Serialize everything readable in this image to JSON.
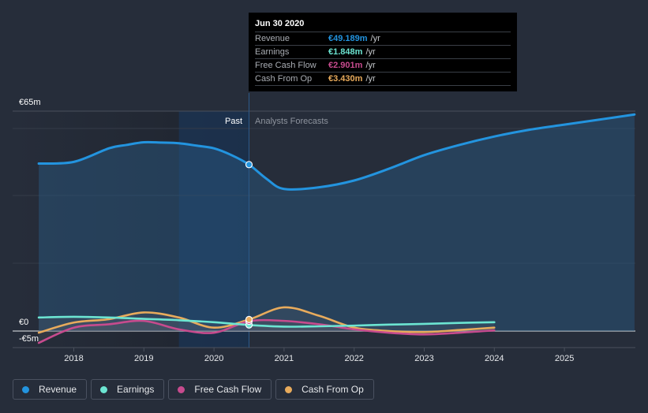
{
  "tooltip": {
    "date": "Jun 30 2020",
    "rows": [
      {
        "name": "Revenue",
        "value": "€49.189m",
        "unit": "/yr",
        "color": "#2394df"
      },
      {
        "name": "Earnings",
        "value": "€1.848m",
        "unit": "/yr",
        "color": "#6ce5d2"
      },
      {
        "name": "Free Cash Flow",
        "value": "€2.901m",
        "unit": "/yr",
        "color": "#c74b8e"
      },
      {
        "name": "Cash From Op",
        "value": "€3.430m",
        "unit": "/yr",
        "color": "#e8ab5c"
      }
    ]
  },
  "regions": {
    "past": "Past",
    "forecast": "Analysts Forecasts"
  },
  "legend": [
    {
      "label": "Revenue",
      "color": "#2394df"
    },
    {
      "label": "Earnings",
      "color": "#6ce5d2"
    },
    {
      "label": "Free Cash Flow",
      "color": "#c74b8e"
    },
    {
      "label": "Cash From Op",
      "color": "#e8ab5c"
    }
  ],
  "chart_data": {
    "type": "line",
    "title": "",
    "xlabel": "",
    "ylabel": "",
    "unit": "€m",
    "ylim": [
      -5,
      65
    ],
    "xlim": [
      2017.5,
      2026.0
    ],
    "y_tick_labels": [
      {
        "value": 65,
        "label": "€65m"
      },
      {
        "value": 0,
        "label": "€0"
      },
      {
        "value": -5,
        "label": "-€5m"
      }
    ],
    "x_tick_labels": [
      "2018",
      "2019",
      "2020",
      "2021",
      "2022",
      "2023",
      "2024",
      "2025"
    ],
    "x_ticks": [
      2018,
      2019,
      2020,
      2021,
      2022,
      2023,
      2024,
      2025
    ],
    "past_forecast_divider": 2020.5,
    "highlight_point": {
      "x": 2020.5,
      "date": "Jun 30 2020"
    },
    "series": [
      {
        "name": "Revenue",
        "color": "#2394df",
        "points": [
          [
            2017.5,
            49.5
          ],
          [
            2018.0,
            50.0
          ],
          [
            2018.5,
            54.0
          ],
          [
            2018.75,
            55.0
          ],
          [
            2019.0,
            55.8
          ],
          [
            2019.25,
            55.7
          ],
          [
            2019.5,
            55.5
          ],
          [
            2019.75,
            54.8
          ],
          [
            2020.0,
            54.0
          ],
          [
            2020.25,
            52.0
          ],
          [
            2020.5,
            49.2
          ],
          [
            2020.75,
            45.0
          ],
          [
            2021.0,
            42.0
          ],
          [
            2021.5,
            42.5
          ],
          [
            2022.0,
            44.5
          ],
          [
            2022.5,
            48.0
          ],
          [
            2023.0,
            52.0
          ],
          [
            2023.5,
            55.0
          ],
          [
            2024.0,
            57.5
          ],
          [
            2024.5,
            59.5
          ],
          [
            2025.0,
            61.0
          ],
          [
            2025.5,
            62.5
          ],
          [
            2026.0,
            64.0
          ]
        ]
      },
      {
        "name": "Earnings",
        "color": "#6ce5d2",
        "points": [
          [
            2017.5,
            4.0
          ],
          [
            2018.0,
            4.2
          ],
          [
            2018.5,
            4.0
          ],
          [
            2019.0,
            3.6
          ],
          [
            2019.5,
            3.2
          ],
          [
            2020.0,
            2.6
          ],
          [
            2020.5,
            1.8
          ],
          [
            2021.0,
            1.3
          ],
          [
            2021.5,
            1.4
          ],
          [
            2022.0,
            1.6
          ],
          [
            2022.5,
            1.9
          ],
          [
            2023.0,
            2.1
          ],
          [
            2023.5,
            2.4
          ],
          [
            2024.0,
            2.6
          ]
        ]
      },
      {
        "name": "Free Cash Flow",
        "color": "#c74b8e",
        "points": [
          [
            2017.5,
            -3.5
          ],
          [
            2018.0,
            1.0
          ],
          [
            2018.5,
            2.0
          ],
          [
            2019.0,
            3.0
          ],
          [
            2019.5,
            0.5
          ],
          [
            2020.0,
            -0.5
          ],
          [
            2020.5,
            2.9
          ],
          [
            2021.0,
            3.0
          ],
          [
            2021.5,
            2.0
          ],
          [
            2022.0,
            0.5
          ],
          [
            2022.5,
            -0.5
          ],
          [
            2023.0,
            -1.0
          ],
          [
            2023.5,
            -0.5
          ],
          [
            2024.0,
            0.2
          ]
        ]
      },
      {
        "name": "Cash From Op",
        "color": "#e8ab5c",
        "points": [
          [
            2017.5,
            -0.5
          ],
          [
            2018.0,
            2.5
          ],
          [
            2018.5,
            3.5
          ],
          [
            2019.0,
            5.5
          ],
          [
            2019.5,
            4.0
          ],
          [
            2020.0,
            1.0
          ],
          [
            2020.5,
            3.4
          ],
          [
            2021.0,
            7.0
          ],
          [
            2021.5,
            4.5
          ],
          [
            2022.0,
            1.0
          ],
          [
            2022.5,
            0.0
          ],
          [
            2023.0,
            -0.3
          ],
          [
            2023.5,
            0.3
          ],
          [
            2024.0,
            1.0
          ]
        ]
      }
    ]
  }
}
